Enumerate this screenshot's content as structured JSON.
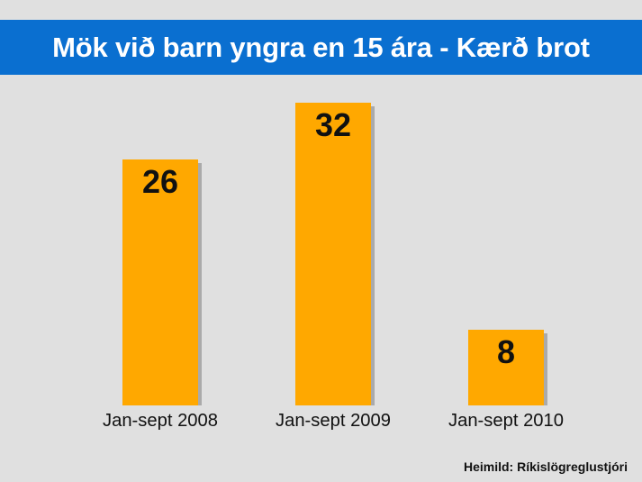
{
  "chart_data": {
    "type": "bar",
    "title": "Mök við barn yngra en 15 ára - Kærð brot",
    "categories": [
      "Jan-sept 2008",
      "Jan-sept 2009",
      "Jan-sept 2010"
    ],
    "values": [
      26,
      32,
      8
    ],
    "value_labels": [
      "26",
      "32",
      "8"
    ],
    "source": "Heimild: Ríkislögreglustjóri",
    "bar_color": "#ffa800",
    "shadow_color": "#aaaaaa",
    "header_color": "#0a6fd0",
    "background_color": "#e0e0e0",
    "grid": false,
    "legend": "none"
  }
}
